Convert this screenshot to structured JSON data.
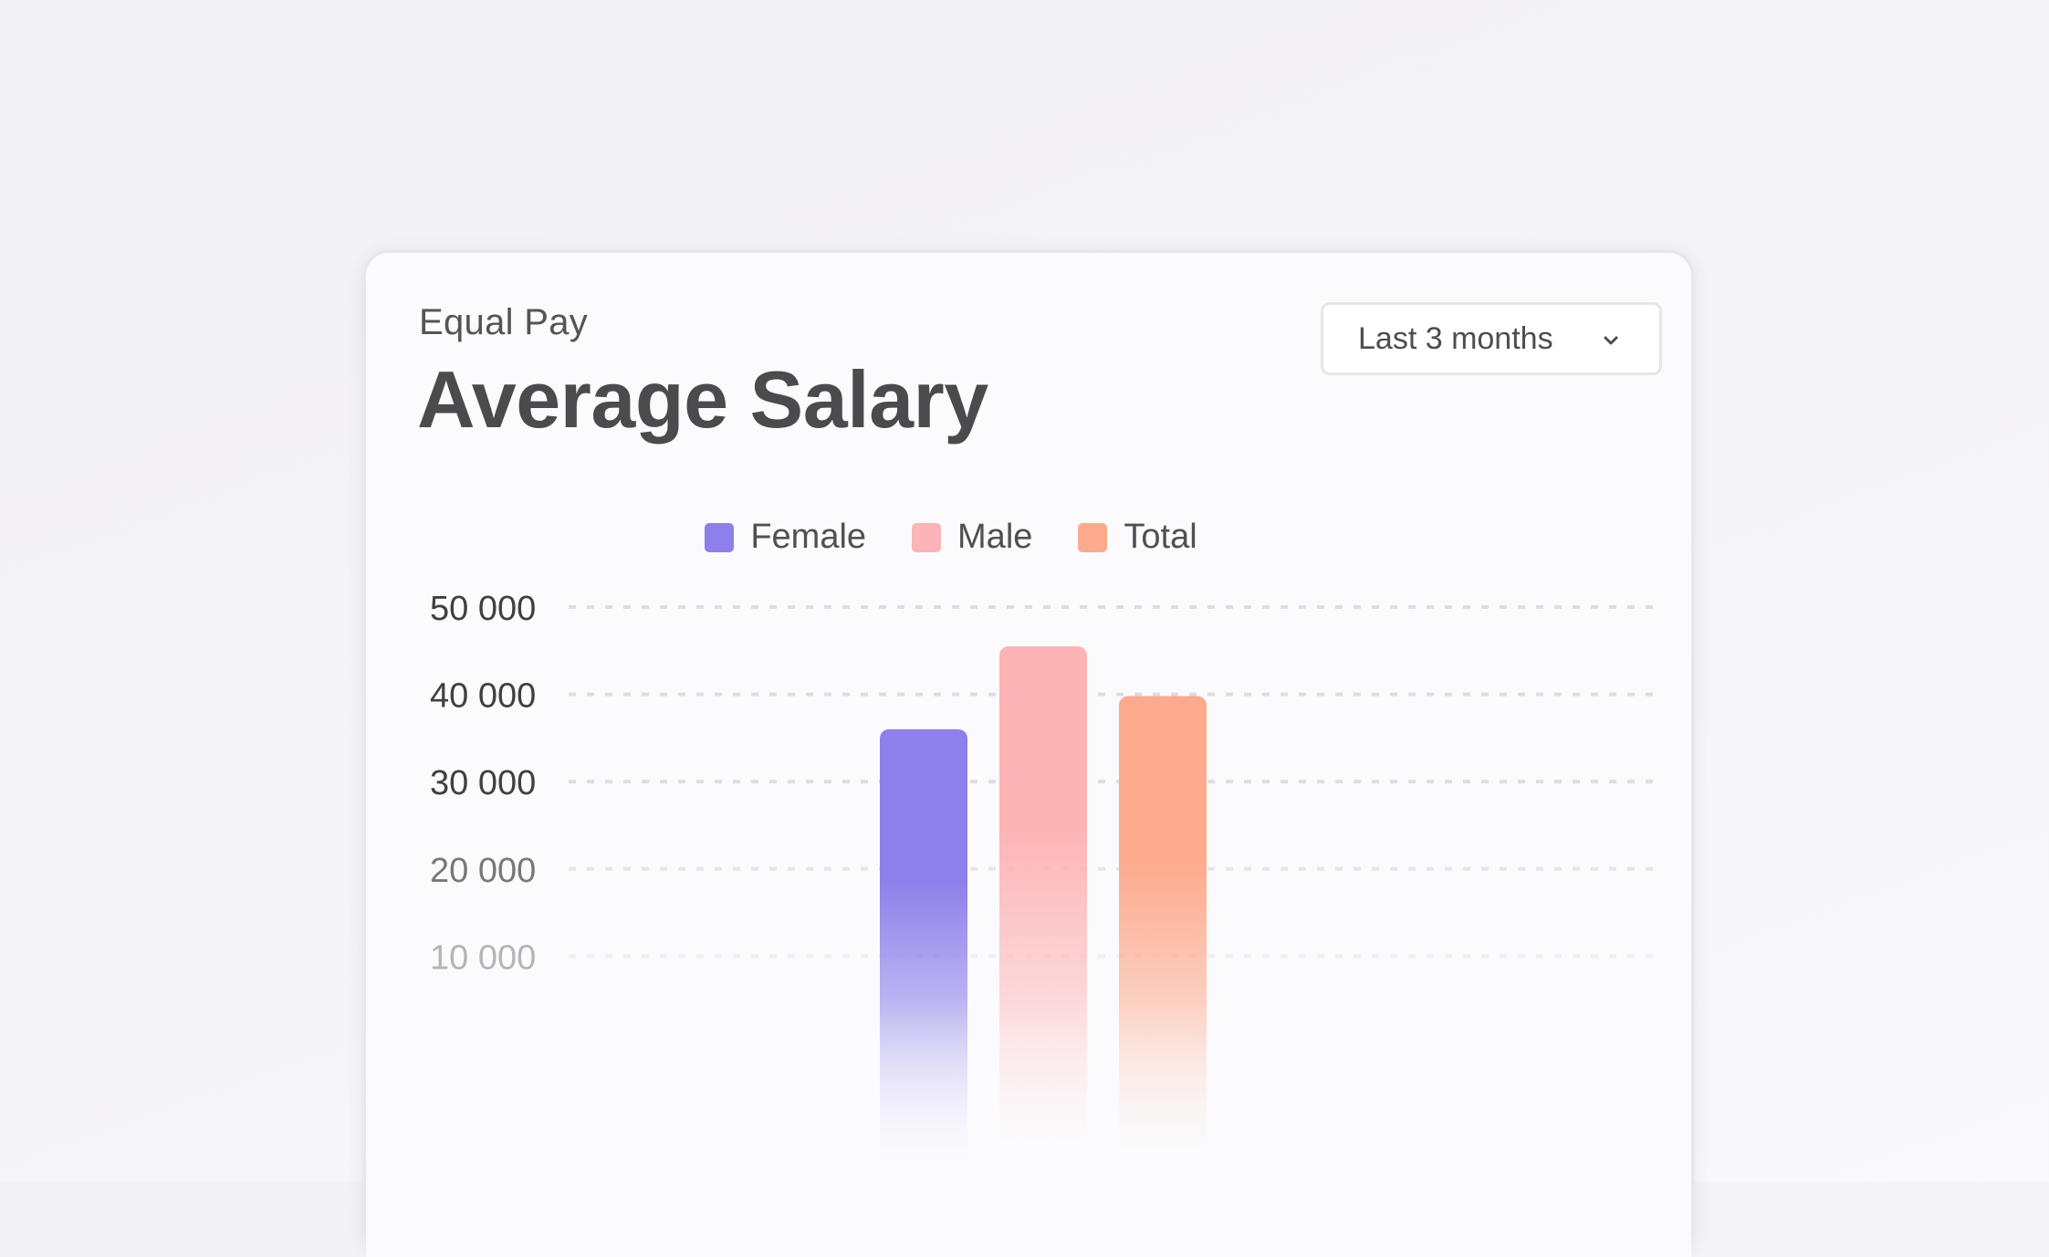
{
  "card": {
    "eyebrow": "Equal Pay",
    "title": "Average Salary",
    "period_select": {
      "selected": "Last 3 months",
      "icon": "chevron-down-icon"
    }
  },
  "colors": {
    "female": "#8e80ea",
    "male": "#fdb4b6",
    "total": "#fcaa8d",
    "grid": "#dedde3",
    "axis_text": "#3f3f44"
  },
  "chart_data": {
    "type": "bar",
    "title": "Average Salary",
    "categories": [
      "Female",
      "Male",
      "Total"
    ],
    "series": [
      {
        "name": "Female",
        "value": 36000,
        "color": "#8e80ea"
      },
      {
        "name": "Male",
        "value": 45500,
        "color": "#fdb4b6"
      },
      {
        "name": "Total",
        "value": 39800,
        "color": "#fcaa8d"
      }
    ],
    "legend": [
      "Female",
      "Male",
      "Total"
    ],
    "legend_position": "top-center",
    "yticks": [
      "50 000",
      "40 000",
      "30 000",
      "20 000",
      "10 000"
    ],
    "ytick_values": [
      50000,
      40000,
      30000,
      20000,
      10000
    ],
    "ylim": [
      0,
      50000
    ],
    "grid": true,
    "grid_style": "dashed"
  }
}
